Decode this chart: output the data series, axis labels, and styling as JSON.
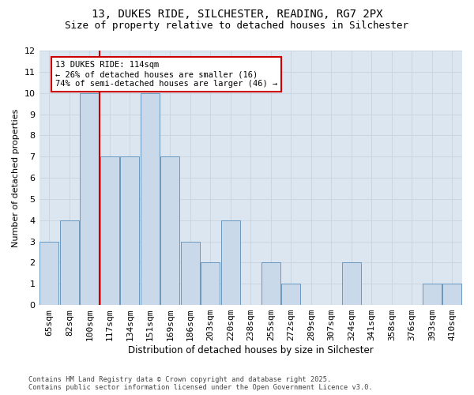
{
  "title1": "13, DUKES RIDE, SILCHESTER, READING, RG7 2PX",
  "title2": "Size of property relative to detached houses in Silchester",
  "xlabel": "Distribution of detached houses by size in Silchester",
  "ylabel": "Number of detached properties",
  "categories": [
    "65sqm",
    "82sqm",
    "100sqm",
    "117sqm",
    "134sqm",
    "151sqm",
    "169sqm",
    "186sqm",
    "203sqm",
    "220sqm",
    "238sqm",
    "255sqm",
    "272sqm",
    "289sqm",
    "307sqm",
    "324sqm",
    "341sqm",
    "358sqm",
    "376sqm",
    "393sqm",
    "410sqm"
  ],
  "values": [
    3,
    4,
    10,
    7,
    7,
    10,
    7,
    3,
    2,
    4,
    0,
    2,
    1,
    0,
    0,
    2,
    0,
    0,
    0,
    1,
    1
  ],
  "bar_color": "#c9d9ea",
  "bar_edge_color": "#5b8db8",
  "grid_color": "#c8d4df",
  "bg_color": "#dce6f0",
  "vline_x": 2.5,
  "annotation_text": "13 DUKES RIDE: 114sqm\n← 26% of detached houses are smaller (16)\n74% of semi-detached houses are larger (46) →",
  "ylim_max": 12,
  "yticks_max": 12,
  "footnote": "Contains HM Land Registry data © Crown copyright and database right 2025.\nContains public sector information licensed under the Open Government Licence v3.0."
}
